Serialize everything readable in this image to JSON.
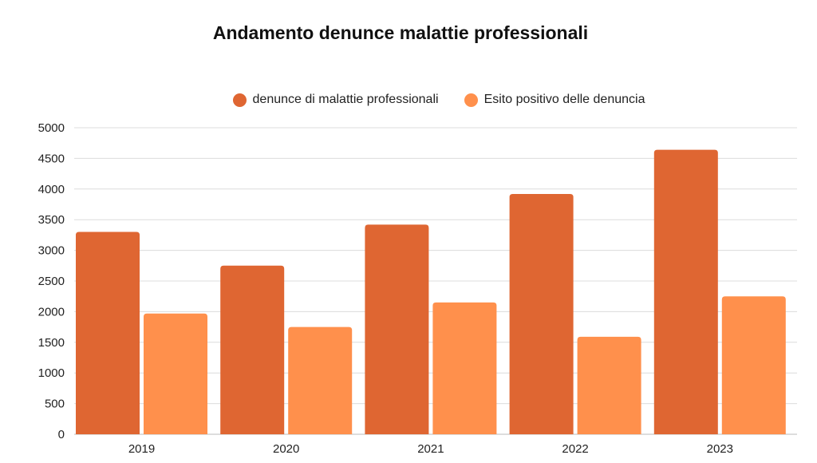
{
  "chart_data": {
    "type": "bar",
    "title": "Andamento denunce malattie professionali",
    "categories": [
      "2019",
      "2020",
      "2021",
      "2022",
      "2023"
    ],
    "series": [
      {
        "name": "denunce di malattie professionali",
        "color": "#DF6632",
        "values": [
          3300,
          2750,
          3420,
          3920,
          4640
        ]
      },
      {
        "name": "Esito positivo delle denuncia",
        "color": "#FF904C",
        "values": [
          1970,
          1750,
          2150,
          1590,
          2250
        ]
      }
    ],
    "xlabel": "",
    "ylabel": "",
    "ylim": [
      0,
      5000
    ],
    "yticks": [
      "0",
      "500",
      "1000",
      "1500",
      "2000",
      "2500",
      "3000",
      "3500",
      "4000",
      "4500",
      "5000"
    ],
    "grid": true,
    "legend_position": "top-center"
  }
}
